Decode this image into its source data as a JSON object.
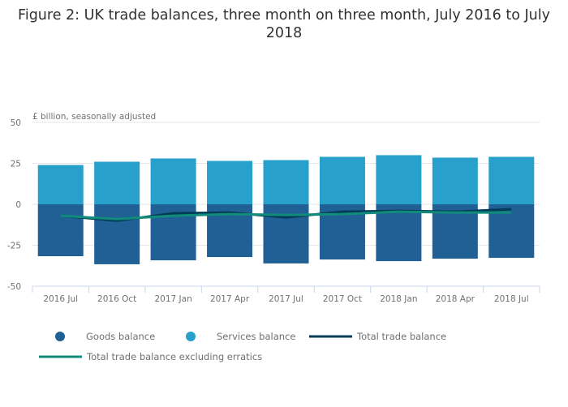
{
  "chart_data": {
    "type": "bar",
    "title": "Figure 2: UK trade balances, three month on three month, July 2016 to July 2018",
    "ylabel": "£ billion, seasonally adjusted",
    "xlabel": "",
    "ylim": [
      -50,
      50
    ],
    "yticks": [
      "50",
      "25",
      "0",
      "-25",
      "-50"
    ],
    "yticks_values": [
      50,
      25,
      0,
      -25,
      -50
    ],
    "grid": true,
    "legend_position": "bottom",
    "categories": [
      "2016 Jul",
      "2016 Oct",
      "2017 Jan",
      "2017 Apr",
      "2017 Jul",
      "2017 Oct",
      "2018 Jan",
      "2018 Apr",
      "2018 Jul"
    ],
    "series": [
      {
        "name": "Goods balance",
        "type": "bar",
        "color": "#206095",
        "values": [
          -31.7,
          -36.6,
          -34.2,
          -32.2,
          -36.1,
          -33.7,
          -34.7,
          -33.2,
          -32.7
        ]
      },
      {
        "name": "Services balance",
        "type": "bar",
        "color": "#27a0cc",
        "values": [
          24.0,
          26.0,
          28.0,
          26.5,
          27.0,
          29.0,
          30.0,
          28.5,
          29.0
        ]
      },
      {
        "name": "Total trade balance",
        "type": "line",
        "color": "#003c57",
        "values": [
          -7.0,
          -10.0,
          -5.5,
          -5.0,
          -8.0,
          -4.5,
          -4.0,
          -4.5,
          -3.0
        ]
      },
      {
        "name": "Total trade balance excluding erratics",
        "type": "line",
        "color": "#118c7b",
        "values": [
          -7.0,
          -9.0,
          -7.0,
          -6.0,
          -6.5,
          -6.0,
          -4.5,
          -5.0,
          -5.0
        ]
      }
    ]
  }
}
